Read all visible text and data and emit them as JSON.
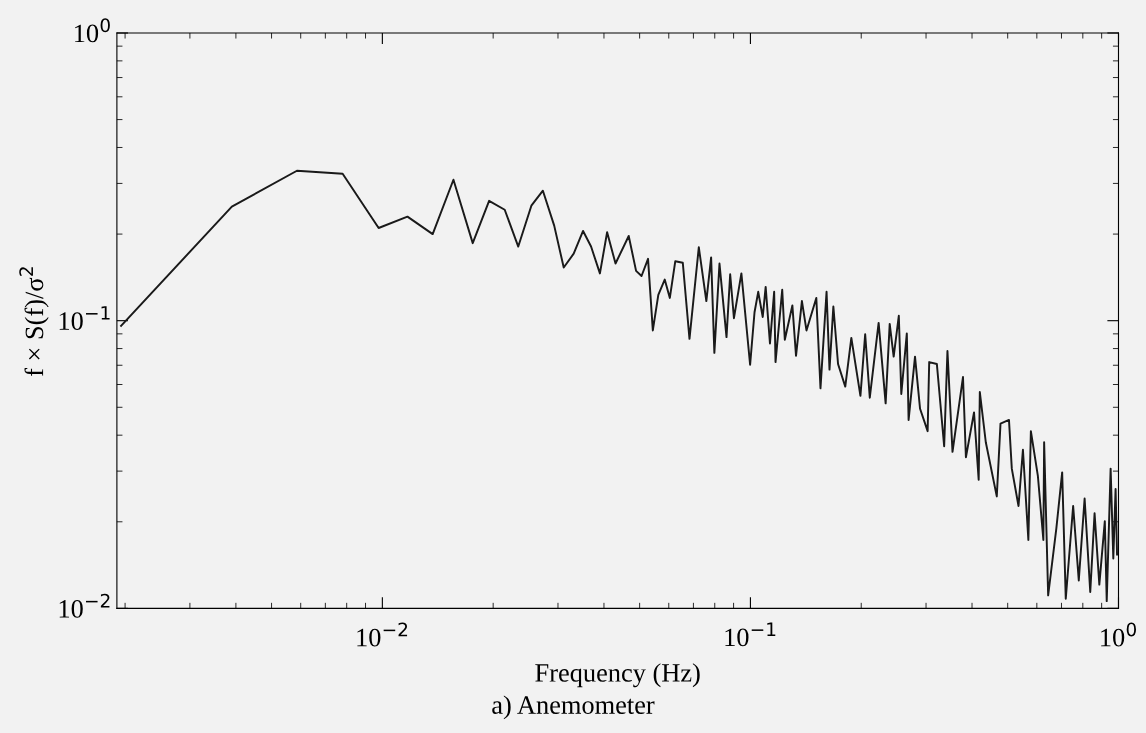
{
  "chart_data": {
    "type": "line",
    "xlabel": "Frequency (Hz)",
    "ylabel": "f × S(f)/σ$^{2}$",
    "log": "xy",
    "grid": false,
    "marker": "none",
    "line_style": "solid",
    "xlim": [
      0.0019,
      1
    ],
    "ylim": [
      0.01,
      1
    ],
    "xticks": [
      {
        "value": 0.01,
        "label": "10$^{−2}$"
      },
      {
        "value": 0.1,
        "label": "10$^{−1}$"
      },
      {
        "value": 1,
        "label": "10$^{0}$"
      }
    ],
    "yticks": [
      {
        "value": 0.01,
        "label": "10$^{−2}$"
      },
      {
        "value": 0.1,
        "label": "10$^{−1}$"
      },
      {
        "value": 1,
        "label": "10$^{0}$"
      }
    ],
    "annotations": [
      "a) Anemometer"
    ],
    "series": [
      {
        "color": "#1a1a1a",
        "x": [
          0.00195,
          0.0039,
          0.00586,
          0.0078,
          0.00977,
          0.0117,
          0.0137,
          0.0156,
          0.0176,
          0.0195,
          0.0215,
          0.0234,
          0.0254,
          0.0273,
          0.0293,
          0.0311,
          0.0331,
          0.0351,
          0.0369,
          0.039,
          0.0408,
          0.043,
          0.0467,
          0.0489,
          0.0506,
          0.0527,
          0.0543,
          0.0562,
          0.0585,
          0.0604,
          0.0625,
          0.0655,
          0.0683,
          0.0724,
          0.0759,
          0.0782,
          0.0798,
          0.0824,
          0.0861,
          0.0881,
          0.0902,
          0.0945,
          0.0998,
          0.1026,
          0.105,
          0.108,
          0.11,
          0.113,
          0.116,
          0.117,
          0.122,
          0.124,
          0.13,
          0.133,
          0.138,
          0.142,
          0.151,
          0.155,
          0.161,
          0.164,
          0.168,
          0.173,
          0.181,
          0.188,
          0.199,
          0.205,
          0.211,
          0.223,
          0.233,
          0.239,
          0.245,
          0.253,
          0.257,
          0.266,
          0.269,
          0.28,
          0.289,
          0.303,
          0.306,
          0.321,
          0.336,
          0.343,
          0.354,
          0.378,
          0.385,
          0.405,
          0.417,
          0.42,
          0.436,
          0.467,
          0.478,
          0.504,
          0.513,
          0.535,
          0.55,
          0.569,
          0.578,
          0.604,
          0.625,
          0.628,
          0.644,
          0.678,
          0.703,
          0.719,
          0.753,
          0.78,
          0.809,
          0.838,
          0.861,
          0.887,
          0.918,
          0.929,
          0.952,
          0.968,
          0.982,
          0.991
        ],
        "values": [
          0.096,
          0.249,
          0.332,
          0.324,
          0.21,
          0.23,
          0.2,
          0.309,
          0.186,
          0.261,
          0.243,
          0.181,
          0.251,
          0.283,
          0.214,
          0.153,
          0.171,
          0.205,
          0.181,
          0.146,
          0.203,
          0.158,
          0.197,
          0.149,
          0.143,
          0.164,
          0.0925,
          0.123,
          0.139,
          0.12,
          0.161,
          0.159,
          0.0865,
          0.18,
          0.117,
          0.166,
          0.0773,
          0.158,
          0.0877,
          0.145,
          0.102,
          0.146,
          0.0703,
          0.107,
          0.126,
          0.103,
          0.131,
          0.0833,
          0.126,
          0.0718,
          0.128,
          0.0859,
          0.113,
          0.0755,
          0.117,
          0.0925,
          0.12,
          0.0582,
          0.126,
          0.0676,
          0.112,
          0.0707,
          0.059,
          0.0871,
          0.0548,
          0.0897,
          0.054,
          0.0982,
          0.0516,
          0.0975,
          0.075,
          0.104,
          0.0556,
          0.0903,
          0.0452,
          0.075,
          0.0494,
          0.0413,
          0.0718,
          0.0707,
          0.0366,
          0.0785,
          0.035,
          0.0637,
          0.0335,
          0.048,
          0.028,
          0.0565,
          0.0378,
          0.0245,
          0.0439,
          0.0452,
          0.0306,
          0.0227,
          0.0356,
          0.0173,
          0.0413,
          0.0288,
          0.0173,
          0.0378,
          0.0111,
          0.019,
          0.0297,
          0.0108,
          0.0227,
          0.0125,
          0.0241,
          0.0114,
          0.0214,
          0.0121,
          0.0201,
          0.0106,
          0.0306,
          0.0149,
          0.026,
          0.0154
        ]
      }
    ]
  }
}
